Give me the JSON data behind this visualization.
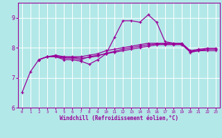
{
  "title": "",
  "xlabel": "Windchill (Refroidissement éolien,°C)",
  "ylabel": "",
  "bg_color": "#b3e8e8",
  "line_color": "#990099",
  "grid_color": "#ffffff",
  "xlim": [
    -0.5,
    23.5
  ],
  "ylim": [
    6.0,
    9.5
  ],
  "yticks": [
    6,
    7,
    8,
    9
  ],
  "xticks": [
    0,
    1,
    2,
    3,
    4,
    5,
    6,
    7,
    8,
    9,
    10,
    11,
    12,
    13,
    14,
    15,
    16,
    17,
    18,
    19,
    20,
    21,
    22,
    23
  ],
  "series": [
    [
      6.5,
      7.2,
      7.6,
      7.7,
      7.7,
      7.6,
      7.6,
      7.55,
      7.45,
      7.6,
      7.8,
      8.35,
      8.9,
      8.9,
      8.85,
      9.1,
      8.85,
      8.2,
      8.15,
      8.15,
      7.85,
      7.9,
      7.9,
      7.9
    ],
    [
      null,
      null,
      7.6,
      7.7,
      7.7,
      7.65,
      7.65,
      7.6,
      7.7,
      7.75,
      7.8,
      7.85,
      7.9,
      7.95,
      8.0,
      8.05,
      8.1,
      8.1,
      8.1,
      8.1,
      7.85,
      7.9,
      7.95,
      7.95
    ],
    [
      null,
      null,
      7.6,
      7.7,
      7.75,
      7.7,
      7.7,
      7.7,
      7.75,
      7.8,
      7.9,
      7.95,
      8.0,
      8.05,
      8.1,
      8.15,
      8.15,
      8.15,
      8.15,
      8.15,
      7.9,
      7.95,
      7.98,
      7.98
    ],
    [
      null,
      null,
      7.6,
      7.7,
      7.72,
      7.68,
      7.68,
      7.65,
      7.68,
      7.72,
      7.82,
      7.88,
      7.95,
      8.0,
      8.05,
      8.1,
      8.12,
      8.12,
      8.12,
      8.12,
      7.88,
      7.92,
      7.95,
      7.95
    ]
  ]
}
